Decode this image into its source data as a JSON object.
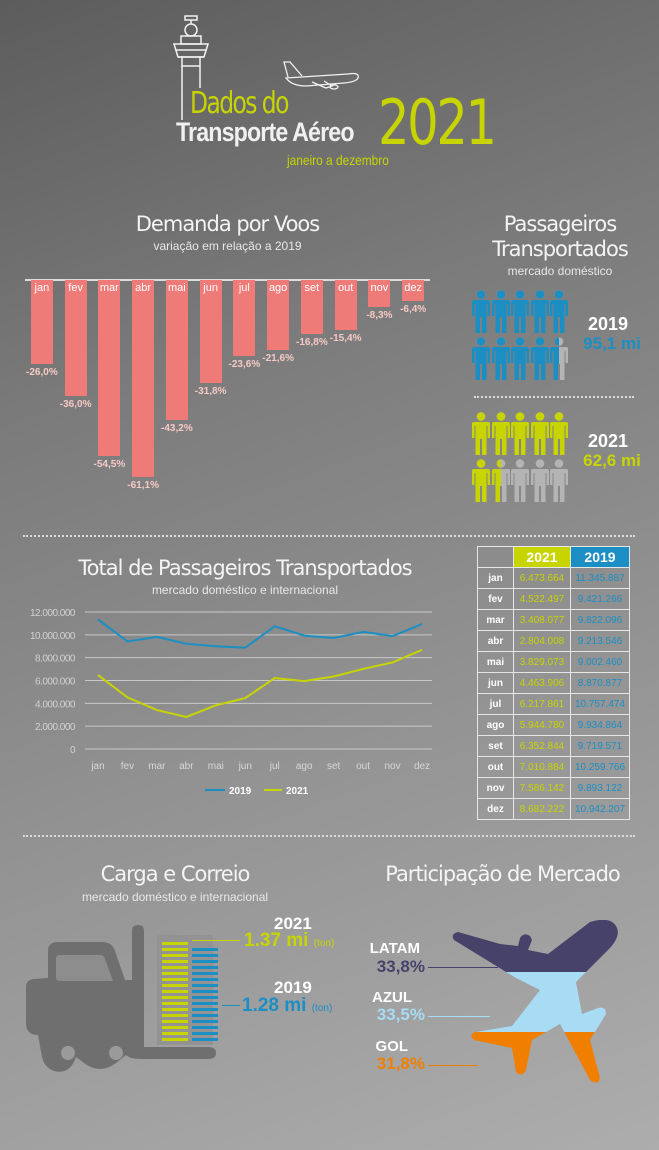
{
  "header": {
    "line1": "Dados do",
    "line2": "Transporte Aéreo",
    "year": "2021",
    "subtitle": "janeiro a dezembro",
    "icons": [
      "control-tower-icon",
      "airplane-icon"
    ]
  },
  "colors": {
    "lime": "#c8d400",
    "blue": "#1b8fc4",
    "bar": "#ef7b78",
    "latam": "#46426a",
    "azul": "#a8dbf4",
    "gol": "#f07f00",
    "forklift": "#6f6f6f"
  },
  "demand": {
    "title": "Demanda por Voos",
    "subtitle": "variação em relação a 2019"
  },
  "passengers": {
    "title_line1": "Passageiros",
    "title_line2": "Transportados",
    "subtitle": "mercado doméstico",
    "y2019": {
      "year": "2019",
      "value": "95,1 mi",
      "icons_filled": 9.5,
      "icons_total": 10
    },
    "y2021": {
      "year": "2021",
      "value": "62,6 mi",
      "icons_filled": 6.5,
      "icons_total": 10
    }
  },
  "total": {
    "title": "Total de Passageiros Transportados",
    "subtitle": "mercado doméstico e internacional"
  },
  "table": {
    "headers": [
      "",
      "2021",
      "2019"
    ],
    "rows": [
      [
        "jan",
        "6.473.664",
        "11.345.887"
      ],
      [
        "fev",
        "4.522.497",
        "9.421.266"
      ],
      [
        "mar",
        "3.408.077",
        "9.822.096"
      ],
      [
        "abr",
        "2.804.008",
        "9.213.546"
      ],
      [
        "mai",
        "3.829.073",
        "9.002.460"
      ],
      [
        "jun",
        "4.463.906",
        "8.870.877"
      ],
      [
        "jul",
        "6.217.861",
        "10.757.474"
      ],
      [
        "ago",
        "5.944.780",
        "9.934.864"
      ],
      [
        "set",
        "6.352.844",
        "9.719.571"
      ],
      [
        "out",
        "7.010.884",
        "10.259.766"
      ],
      [
        "nov",
        "7.586.142",
        "9.893.122"
      ],
      [
        "dez",
        "8.682.222",
        "10.942.207"
      ]
    ]
  },
  "cargo": {
    "title": "Carga e Correio",
    "subtitle": "mercado doméstico e internacional",
    "y2021": {
      "year": "2021",
      "value": "1.37 mi",
      "unit": "(ton)"
    },
    "y2019": {
      "year": "2019",
      "value": "1.28 mi",
      "unit": "(ton)"
    }
  },
  "market": {
    "title": "Participação de Mercado",
    "airlines": [
      {
        "name": "LATAM",
        "share": "33,8%"
      },
      {
        "name": "AZUL",
        "share": "33,5%"
      },
      {
        "name": "GOL",
        "share": "31,8%"
      }
    ]
  },
  "chart_data": [
    {
      "type": "bar",
      "title": "Demanda por Voos",
      "subtitle": "variação em relação a 2019",
      "categories": [
        "jan",
        "fev",
        "mar",
        "abr",
        "mai",
        "jun",
        "jul",
        "ago",
        "set",
        "out",
        "nov",
        "dez"
      ],
      "values": [
        -26.0,
        -36.0,
        -54.5,
        -61.1,
        -43.2,
        -31.8,
        -23.6,
        -21.6,
        -16.8,
        -15.4,
        -8.3,
        -6.4
      ],
      "value_labels": [
        "-26,0%",
        "-36,0%",
        "-54,5%",
        "-61,1%",
        "-43,2%",
        "-31,8%",
        "-23,6%",
        "-21,6%",
        "-16,8%",
        "-15,4%",
        "-8,3%",
        "-6,4%"
      ],
      "ylim": [
        -65,
        0
      ],
      "xlabel": "",
      "ylabel": ""
    },
    {
      "type": "line",
      "title": "Total de Passageiros Transportados",
      "subtitle": "mercado doméstico e internacional",
      "x": [
        "jan",
        "fev",
        "mar",
        "abr",
        "mai",
        "jun",
        "jul",
        "ago",
        "set",
        "out",
        "nov",
        "dez"
      ],
      "series": [
        {
          "name": "2019",
          "values": [
            11345887,
            9421266,
            9822096,
            9213546,
            9002460,
            8870877,
            10757474,
            9934864,
            9719571,
            10259766,
            9893122,
            10942207
          ]
        },
        {
          "name": "2021",
          "values": [
            6473664,
            4522497,
            3408077,
            2804008,
            3829073,
            4463906,
            6217861,
            5944780,
            6352844,
            7010884,
            7586142,
            8682222
          ]
        }
      ],
      "yticks": [
        "0",
        "2.000.000",
        "4.000.000",
        "6.000.000",
        "8.000.000",
        "10.000.000",
        "12.000.000"
      ],
      "ylim": [
        0,
        12000000
      ],
      "grid": true,
      "legend": "bottom"
    }
  ]
}
